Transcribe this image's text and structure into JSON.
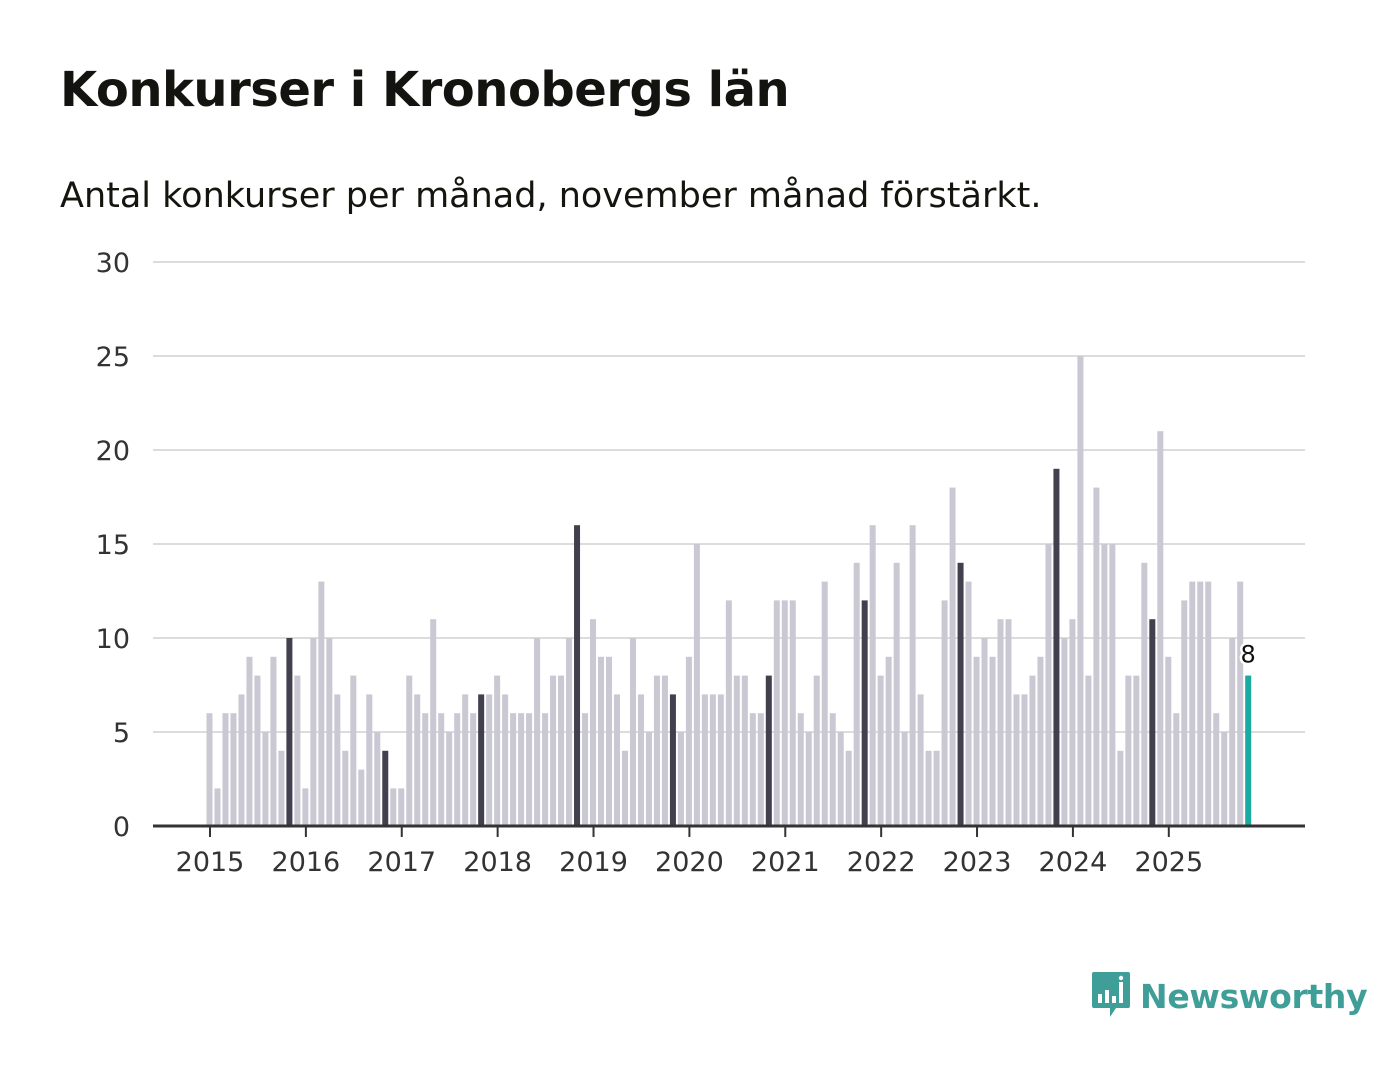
{
  "chart_data": {
    "type": "bar",
    "title": "Konkurser i Kronobergs län",
    "subtitle": "Antal konkurser per månad, november månad förstärkt.",
    "xlabel": "",
    "ylabel": "",
    "ylim": [
      0,
      30
    ],
    "yticks": [
      "0",
      "5",
      "10",
      "15",
      "20",
      "25",
      "30"
    ],
    "xticks": [
      "2015",
      "2016",
      "2017",
      "2018",
      "2019",
      "2020",
      "2021",
      "2022",
      "2023",
      "2024",
      "2025"
    ],
    "start_month": "2015-01",
    "highlight_month": "november",
    "last_value_label": "8",
    "values": [
      6,
      2,
      6,
      6,
      7,
      9,
      8,
      5,
      9,
      4,
      10,
      8,
      2,
      10,
      13,
      10,
      7,
      4,
      8,
      3,
      7,
      5,
      4,
      2,
      2,
      8,
      7,
      6,
      11,
      6,
      5,
      6,
      7,
      6,
      7,
      7,
      8,
      7,
      6,
      6,
      6,
      10,
      6,
      8,
      8,
      10,
      16,
      6,
      11,
      9,
      9,
      7,
      4,
      10,
      7,
      5,
      8,
      8,
      7,
      5,
      9,
      15,
      7,
      7,
      7,
      12,
      8,
      8,
      6,
      6,
      8,
      12,
      12,
      12,
      6,
      5,
      8,
      13,
      6,
      5,
      4,
      14,
      12,
      16,
      8,
      9,
      14,
      5,
      16,
      7,
      4,
      4,
      12,
      18,
      14,
      13,
      9,
      10,
      9,
      11,
      11,
      7,
      7,
      8,
      9,
      15,
      19,
      10,
      11,
      25,
      8,
      18,
      15,
      15,
      4,
      8,
      8,
      14,
      11,
      21,
      9,
      6,
      12,
      13,
      13,
      13,
      6,
      5,
      10,
      13,
      8
    ]
  },
  "colors": {
    "bar": "#c9c8d3",
    "november": "#40404e",
    "latest": "#1aaaa0",
    "grid": "#dcdcdc",
    "axis": "#333333",
    "tick_text": "#333333",
    "brand": "#3f9e98"
  },
  "brand": {
    "name": "Newsworthy",
    "icon": "newsworthy-logo-icon"
  }
}
